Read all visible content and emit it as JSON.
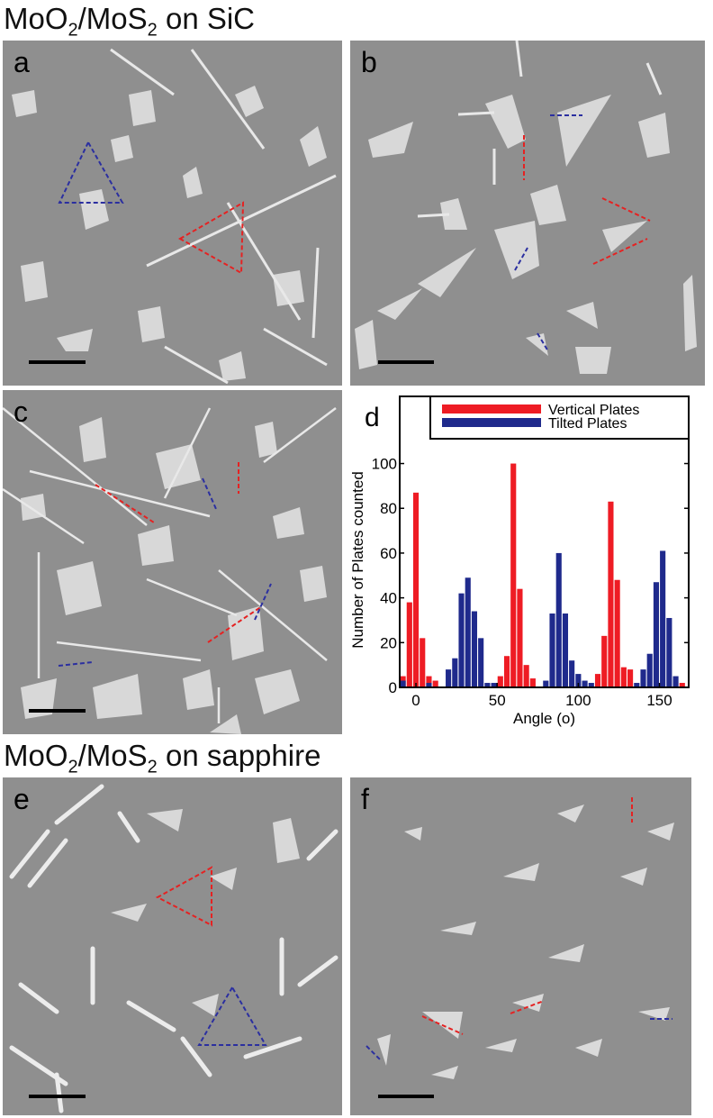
{
  "sections": [
    {
      "title_pre": "MoO",
      "sub1": "2",
      "title_mid": "/MoS",
      "sub2": "2",
      "title_post": " on SiC"
    },
    {
      "title_pre": "MoO",
      "sub1": "2",
      "title_mid": "/MoS",
      "sub2": "2",
      "title_post": " on sapphire"
    }
  ],
  "panels": {
    "a": "a",
    "b": "b",
    "c": "c",
    "d": "d",
    "e": "e",
    "f": "f"
  },
  "colors": {
    "vertical": "#ee1c24",
    "tilted": "#1f2a8c",
    "sem_bg": "#8f8f8f"
  },
  "chart_data": {
    "type": "bar",
    "title": "",
    "xlabel": "Angle (o)",
    "ylabel": "Number of Plates counted",
    "xlim": [
      -10,
      168
    ],
    "ylim": [
      0,
      130
    ],
    "xticks": [
      0,
      50,
      100,
      150
    ],
    "yticks": [
      0,
      20,
      40,
      60,
      80,
      100
    ],
    "legend_position": "top-right",
    "series": [
      {
        "name": "Vertical Plates",
        "color": "#ee1c24",
        "x": [
          -8,
          -4,
          0,
          4,
          8,
          12,
          52,
          56,
          60,
          64,
          68,
          72,
          112,
          116,
          120,
          124,
          128,
          132,
          164
        ],
        "values": [
          5,
          38,
          87,
          22,
          5,
          3,
          5,
          14,
          100,
          44,
          10,
          4,
          6,
          23,
          83,
          48,
          9,
          8,
          2
        ]
      },
      {
        "name": "Tilted Plates",
        "color": "#1f2a8c",
        "x": [
          -8,
          8,
          20,
          24,
          28,
          32,
          36,
          40,
          44,
          48,
          80,
          84,
          88,
          92,
          96,
          100,
          104,
          108,
          136,
          140,
          144,
          148,
          152,
          156,
          160
        ],
        "values": [
          3,
          2,
          8,
          13,
          42,
          49,
          34,
          22,
          2,
          2,
          3,
          33,
          60,
          33,
          12,
          6,
          3,
          2,
          2,
          8,
          15,
          47,
          61,
          31,
          5
        ]
      }
    ]
  }
}
